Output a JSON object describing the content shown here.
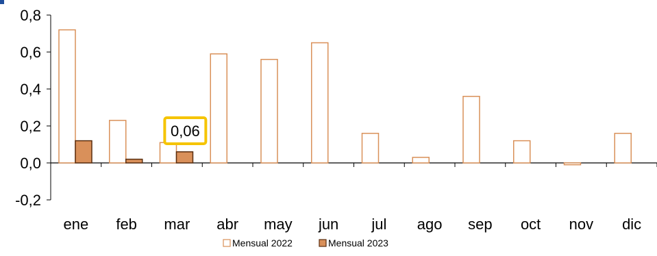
{
  "chart_data": {
    "type": "bar",
    "categories": [
      "ene",
      "feb",
      "mar",
      "abr",
      "may",
      "jun",
      "jul",
      "ago",
      "sep",
      "oct",
      "nov",
      "dic"
    ],
    "series": [
      {
        "name": "Mensual 2022",
        "values": [
          0.72,
          0.23,
          0.11,
          0.59,
          0.56,
          0.65,
          0.16,
          0.03,
          0.36,
          0.12,
          -0.01,
          0.16
        ],
        "fill": "#ffffff",
        "stroke": "#d99058"
      },
      {
        "name": "Mensual 2023",
        "values": [
          0.12,
          0.02,
          0.06,
          null,
          null,
          null,
          null,
          null,
          null,
          null,
          null,
          null
        ],
        "fill": "#d9905a",
        "stroke": "#5a2e10"
      }
    ],
    "ylim": [
      -0.2,
      0.8
    ],
    "yticks": [
      "-0,2",
      "0,0",
      "0,2",
      "0,4",
      "0,6",
      "0,8"
    ],
    "ytick_values": [
      -0.2,
      0.0,
      0.2,
      0.4,
      0.6,
      0.8
    ],
    "annotation": {
      "text": "0,06",
      "category": "mar",
      "color": "#f5c400"
    },
    "legend_position": "bottom-center",
    "grid": false
  }
}
